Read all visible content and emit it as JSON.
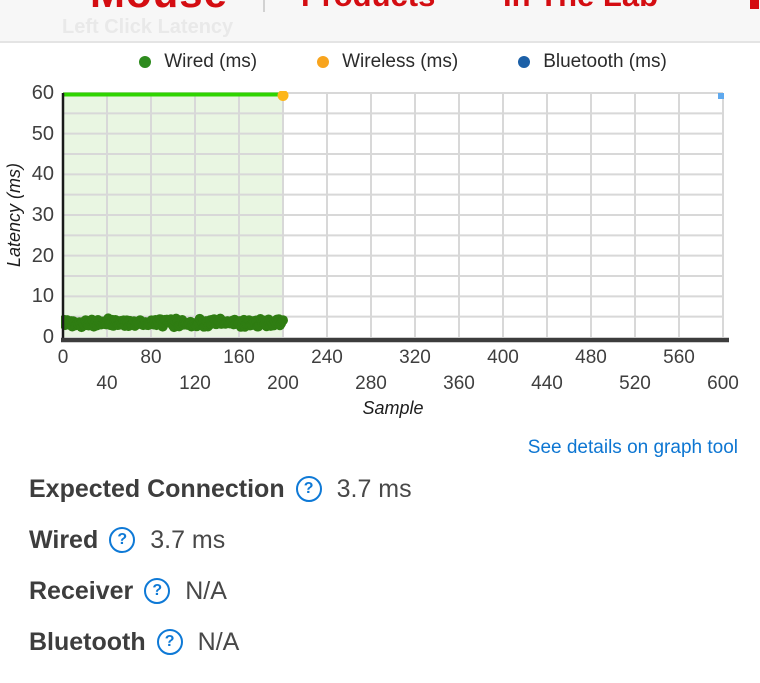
{
  "nav": {
    "items": [
      {
        "label": "Mouse"
      },
      {
        "label": "Products"
      },
      {
        "label": "In The Lab"
      }
    ],
    "watermark": "Left Click Latency"
  },
  "legend": [
    {
      "label": "Wired (ms)",
      "color": "#2e8b1e"
    },
    {
      "label": "Wireless (ms)",
      "color": "#f8a41d"
    },
    {
      "label": "Bluetooth (ms)",
      "color": "#1c60a7"
    }
  ],
  "chart_data": {
    "type": "scatter",
    "title": "Left Click Latency",
    "xlabel": "Sample",
    "ylabel": "Latency (ms)",
    "xlim": [
      0,
      600
    ],
    "ylim": [
      0,
      60
    ],
    "x_ticks": [
      0,
      40,
      80,
      120,
      160,
      200,
      240,
      280,
      320,
      360,
      400,
      440,
      480,
      520,
      560,
      600
    ],
    "y_ticks": [
      0,
      10,
      20,
      30,
      40,
      50,
      60
    ],
    "y_minor_step": 5,
    "grid": true,
    "legend_position": "top",
    "series": [
      {
        "name": "Wired (ms)",
        "type": "band",
        "color": "#2f7d12",
        "x_start": 0,
        "x_end": 200,
        "center_value": 3.5,
        "spread": 1.1,
        "point_count": 215
      },
      {
        "name": "Wireless (ms)",
        "type": "points",
        "color": "#fdb61a",
        "points": [
          [
            200,
            60
          ]
        ]
      },
      {
        "name": "Bluetooth (ms)",
        "type": "points",
        "color": "#1c60a7",
        "points": []
      }
    ],
    "highlight_region": {
      "x_start": 0,
      "x_end": 200,
      "top": 60,
      "fill": "#e9f6e2",
      "line_color": "#2fd400"
    },
    "corner_handle_color": "#5fa9ee",
    "grid_color": "#d8d8d8",
    "x_axis_color": "#3d3d3d",
    "y_axis_color": "#1a1a1a"
  },
  "link": {
    "label": "See details on graph tool"
  },
  "stats": [
    {
      "label": "Expected Connection",
      "value": "3.7 ms"
    },
    {
      "label": "Wired",
      "value": "3.7 ms"
    },
    {
      "label": "Receiver",
      "value": "N/A"
    },
    {
      "label": "Bluetooth",
      "value": "N/A"
    }
  ],
  "icons": {
    "help": "?"
  },
  "colors": {
    "nav_red": "#d40d12",
    "link_blue": "#0d76d2",
    "watermark_gray": "#e9e9e9"
  }
}
